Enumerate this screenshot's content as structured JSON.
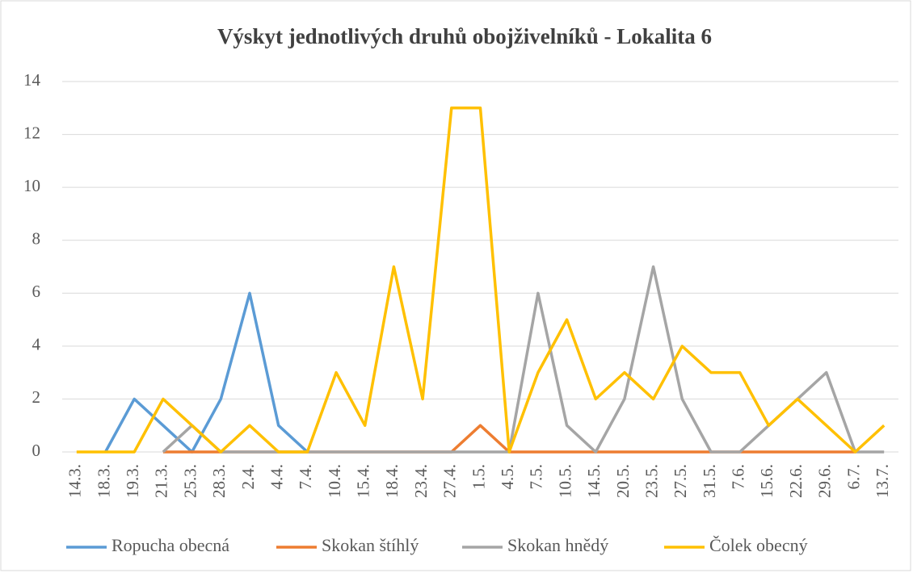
{
  "chart_data": {
    "type": "line",
    "title": "Výskyt jednotlivých druhů obojživelníků - Lokalita 6",
    "categories": [
      "14.3.",
      "18.3.",
      "19.3.",
      "21.3.",
      "25.3.",
      "28.3.",
      "2.4.",
      "4.4.",
      "7.4.",
      "10.4.",
      "15.4.",
      "18.4.",
      "23.4.",
      "27.4.",
      "1.5.",
      "4.5.",
      "7.5.",
      "10.5.",
      "14.5.",
      "20.5.",
      "23.5.",
      "27.5.",
      "31.5.",
      "7.6.",
      "15.6.",
      "22.6.",
      "29.6.",
      "6.7.",
      "13.7."
    ],
    "series": [
      {
        "name": "Ropucha obecná",
        "color": "#5b9bd5",
        "values": [
          null,
          0,
          2,
          1,
          0,
          2,
          6,
          1,
          0,
          null,
          null,
          null,
          null,
          null,
          null,
          null,
          null,
          null,
          null,
          null,
          null,
          null,
          null,
          null,
          null,
          null,
          null,
          null,
          null
        ]
      },
      {
        "name": "Skokan štíhlý",
        "color": "#ed7d31",
        "values": [
          null,
          null,
          null,
          0,
          0,
          0,
          0,
          0,
          0,
          0,
          0,
          0,
          0,
          0,
          1,
          0,
          0,
          0,
          0,
          0,
          0,
          0,
          0,
          0,
          0,
          0,
          0,
          0,
          null
        ]
      },
      {
        "name": "Skokan hnědý",
        "color": "#a5a5a5",
        "values": [
          null,
          null,
          null,
          0,
          1,
          0,
          0,
          0,
          0,
          0,
          0,
          0,
          0,
          0,
          0,
          0,
          6,
          1,
          0,
          2,
          7,
          2,
          0,
          0,
          1,
          2,
          3,
          0,
          0
        ]
      },
      {
        "name": "Čolek obecný",
        "color": "#ffc000",
        "values": [
          0,
          0,
          0,
          2,
          1,
          0,
          1,
          0,
          0,
          3,
          1,
          7,
          2,
          13,
          13,
          0,
          3,
          5,
          2,
          3,
          2,
          4,
          3,
          3,
          1,
          2,
          1,
          0,
          1
        ]
      }
    ],
    "ylim": [
      0,
      14
    ],
    "yticks": [
      0,
      2,
      4,
      6,
      8,
      10,
      12,
      14
    ],
    "grid": true,
    "legend": "bottom"
  }
}
